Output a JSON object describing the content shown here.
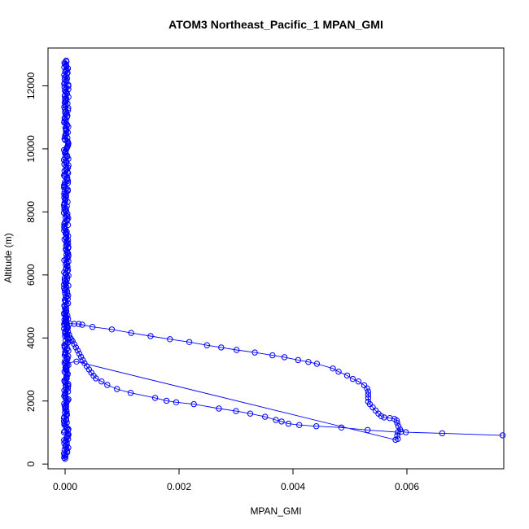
{
  "chart_data": {
    "type": "scatter",
    "title": "ATOM3 Northeast_Pacific_1 MPAN_GMI",
    "xlabel": "MPAN_GMI",
    "ylabel": "Altitude (m)",
    "xlim": [
      -0.0003,
      0.0077
    ],
    "ylim": [
      -150,
      13200
    ],
    "xticks": [
      0,
      0.002,
      0.004,
      0.006
    ],
    "xtick_labels": [
      "0.000",
      "0.002",
      "0.004",
      "0.006"
    ],
    "yticks": [
      0,
      2000,
      4000,
      6000,
      8000,
      10000,
      12000
    ],
    "ytick_labels": [
      "0",
      "2000",
      "4000",
      "6000",
      "8000",
      "10000",
      "12000"
    ],
    "grid": false,
    "legend": "none",
    "marker": "open-circle",
    "connected": true,
    "color": "#0000ff",
    "series": [
      {
        "values": [
          [
            0.00768,
            910
          ],
          [
            0.00662,
            975
          ],
          [
            0.00598,
            1010
          ],
          [
            0.0059,
            1030
          ],
          [
            0.00588,
            1100
          ],
          [
            0.00585,
            1200
          ],
          [
            0.00583,
            1300
          ],
          [
            0.00582,
            1380
          ],
          [
            0.00578,
            1430
          ],
          [
            0.0057,
            1460
          ],
          [
            0.0056,
            1480
          ],
          [
            0.00555,
            1520
          ],
          [
            0.0055,
            1600
          ],
          [
            0.00545,
            1700
          ],
          [
            0.0054,
            1800
          ],
          [
            0.00535,
            1900
          ],
          [
            0.00532,
            1980
          ],
          [
            0.00532,
            2100
          ],
          [
            0.00532,
            2200
          ],
          [
            0.00532,
            2300
          ],
          [
            0.0053,
            2400
          ],
          [
            0.00525,
            2500
          ],
          [
            0.00515,
            2620
          ],
          [
            0.00505,
            2700
          ],
          [
            0.00495,
            2810
          ],
          [
            0.0048,
            2930
          ],
          [
            0.0047,
            3030
          ],
          [
            0.00442,
            3180
          ],
          [
            0.00427,
            3240
          ],
          [
            0.00409,
            3300
          ],
          [
            0.00385,
            3390
          ],
          [
            0.00364,
            3450
          ],
          [
            0.00333,
            3540
          ],
          [
            0.00301,
            3620
          ],
          [
            0.00274,
            3700
          ],
          [
            0.00249,
            3770
          ],
          [
            0.00218,
            3870
          ],
          [
            0.00184,
            3960
          ],
          [
            0.0015,
            4060
          ],
          [
            0.00116,
            4160
          ],
          [
            0.00082,
            4270
          ],
          [
            0.00048,
            4350
          ],
          [
            0.0003,
            4420
          ],
          [
            0.00024,
            4445
          ],
          [
            0.00016,
            4450
          ],
          [
            8e-05,
            4455
          ],
          [
            3e-05,
            4460
          ],
          [
            1e-05,
            4470
          ],
          [
            1e-05,
            4600
          ],
          [
            1e-05,
            4700
          ],
          [
            1e-05,
            4800
          ]
        ]
      },
      {
        "values": [
          [
            1e-05,
            4800
          ],
          [
            1e-05,
            4700
          ],
          [
            2e-05,
            4600
          ],
          [
            2e-05,
            4500
          ],
          [
            3e-05,
            4400
          ],
          [
            4e-05,
            4300
          ],
          [
            5e-05,
            4200
          ],
          [
            7e-05,
            4100
          ],
          [
            9e-05,
            4000
          ],
          [
            0.00011,
            3950
          ],
          [
            0.00013,
            3900
          ],
          [
            0.00016,
            3800
          ],
          [
            0.00019,
            3700
          ],
          [
            0.00022,
            3600
          ],
          [
            0.00025,
            3500
          ],
          [
            0.00028,
            3400
          ],
          [
            0.00031,
            3300
          ],
          [
            0.00034,
            3200
          ],
          [
            0.00038,
            3100
          ],
          [
            0.00042,
            3000
          ],
          [
            0.00046,
            2900
          ],
          [
            0.0005,
            2800
          ],
          [
            0.00054,
            2720
          ],
          [
            0.00064,
            2620
          ],
          [
            0.00074,
            2510
          ],
          [
            0.00091,
            2380
          ],
          [
            0.00115,
            2260
          ],
          [
            0.00158,
            2100
          ],
          [
            0.00178,
            2010
          ],
          [
            0.00195,
            1960
          ],
          [
            0.00226,
            1900
          ],
          [
            0.0027,
            1760
          ],
          [
            0.003,
            1680
          ],
          [
            0.00325,
            1600
          ],
          [
            0.00351,
            1500
          ],
          [
            0.0037,
            1400
          ],
          [
            0.0038,
            1350
          ],
          [
            0.00392,
            1280
          ],
          [
            0.00411,
            1240
          ],
          [
            0.00441,
            1200
          ],
          [
            0.00485,
            1160
          ],
          [
            0.00531,
            1080
          ],
          [
            0.00584,
            1010
          ],
          [
            0.00583,
            900
          ],
          [
            0.00584,
            800
          ],
          [
            0.0058,
            770
          ],
          [
            0.0002,
            3250
          ],
          [
            1e-05,
            3200
          ],
          [
            1e-05,
            3000
          ],
          [
            1e-05,
            2500
          ]
        ]
      },
      {
        "name_hint": "near-zero column",
        "x_range": [
          -2e-05,
          6e-05
        ],
        "y_range": [
          150,
          12800
        ],
        "values": [
          [
            1e-05,
            12800
          ],
          [
            2e-05,
            12700
          ],
          [
            0.0,
            12500
          ],
          [
            2e-05,
            12300
          ],
          [
            1e-05,
            12000
          ],
          [
            0.0,
            11700
          ],
          [
            2e-05,
            11400
          ],
          [
            1e-05,
            11000
          ],
          [
            0.0,
            10500
          ],
          [
            2e-05,
            10000
          ],
          [
            1e-05,
            9500
          ],
          [
            0.0,
            9000
          ],
          [
            2e-05,
            8500
          ],
          [
            1e-05,
            8000
          ],
          [
            0.0,
            7500
          ],
          [
            2e-05,
            7000
          ],
          [
            1e-05,
            6500
          ],
          [
            0.0,
            6000
          ],
          [
            2e-05,
            5500
          ],
          [
            1e-05,
            5000
          ],
          [
            0.0,
            4800
          ],
          [
            1e-05,
            2500
          ],
          [
            3e-05,
            2000
          ],
          [
            1e-05,
            1500
          ],
          [
            4e-05,
            1000
          ],
          [
            2e-05,
            700
          ],
          [
            1e-05,
            400
          ],
          [
            2e-05,
            200
          ]
        ]
      }
    ]
  }
}
